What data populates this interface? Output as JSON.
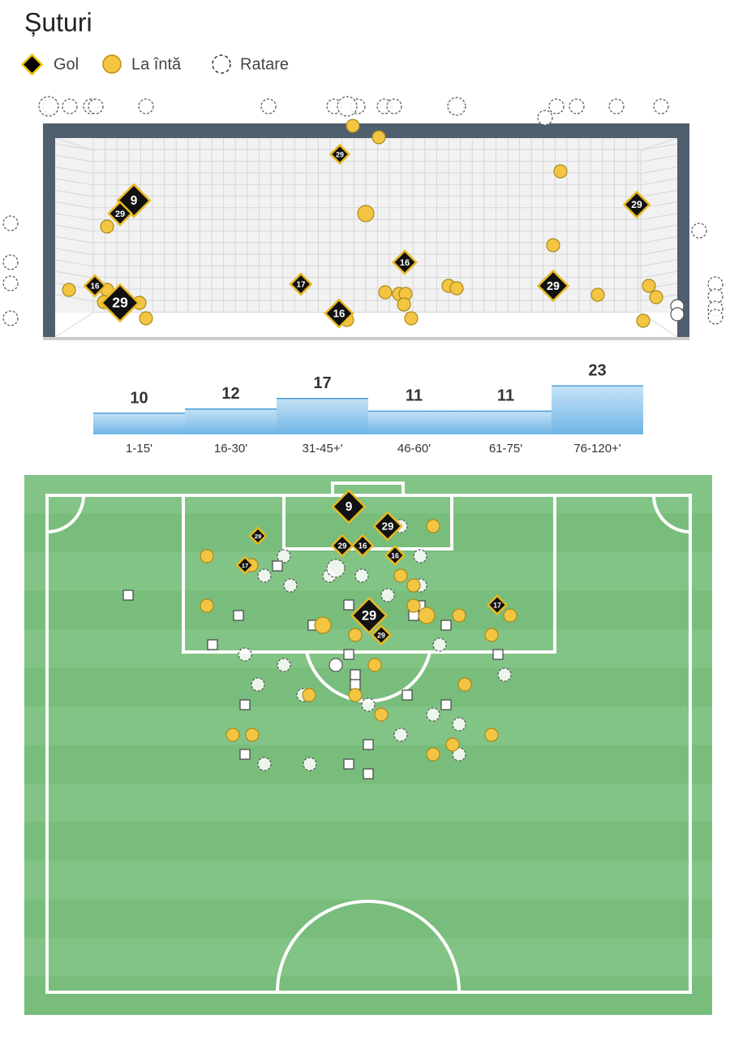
{
  "header": {
    "title": "Șuturi"
  },
  "legend": {
    "items": [
      "Gol",
      "La întă",
      "Ratare"
    ]
  },
  "goal_view": {
    "goals": [
      9,
      29,
      16,
      29,
      17,
      16,
      29,
      16,
      29,
      29
    ]
  },
  "chart_data": {
    "type": "bar",
    "categories": [
      "1-15'",
      "16-30'",
      "31-45+'",
      "46-60'",
      "61-75'",
      "76-120+'"
    ],
    "values": [
      10,
      12,
      17,
      11,
      11,
      23
    ],
    "color": "#7fbfe8"
  },
  "pitch": {
    "goals": [
      9,
      29,
      29,
      16,
      16,
      29,
      17,
      29,
      29,
      17
    ]
  }
}
